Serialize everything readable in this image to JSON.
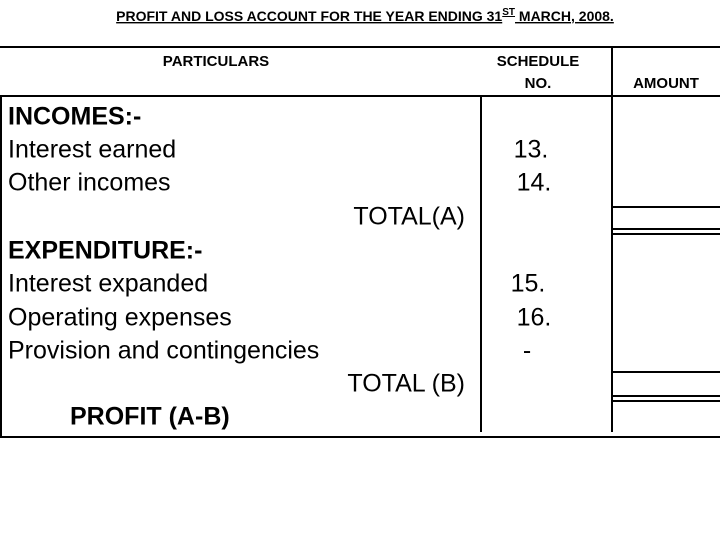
{
  "header": {
    "title": {
      "main": "PROFIT AND LOSS ACCOUNT FOR THE YEAR ENDING 31",
      "superscript": "ST",
      "rest": " MARCH, 2008."
    }
  },
  "table": {
    "headers": {
      "particulars": "PARTICULARS",
      "schedule": [
        "SCHEDULE",
        "NO."
      ],
      "amount": "AMOUNT"
    },
    "rows": [
      {
        "particulars": "INCOMES:-"
      },
      {
        "particulars": "Interest earned",
        "schedule": "13."
      },
      {
        "particulars": "Other incomes",
        "schedule": "14."
      },
      {
        "particulars": "TOTAL(A)"
      },
      {
        "particulars": "EXPENDITURE:-"
      },
      {
        "particulars": "Interest expanded",
        "schedule": "15."
      },
      {
        "particulars": "Operating expenses",
        "schedule": "16."
      },
      {
        "particulars": "Provision and contingencies",
        "schedule": "-"
      },
      {
        "particulars": "TOTAL (B)"
      },
      {
        "particulars": "PROFIT (A-B)"
      }
    ]
  }
}
